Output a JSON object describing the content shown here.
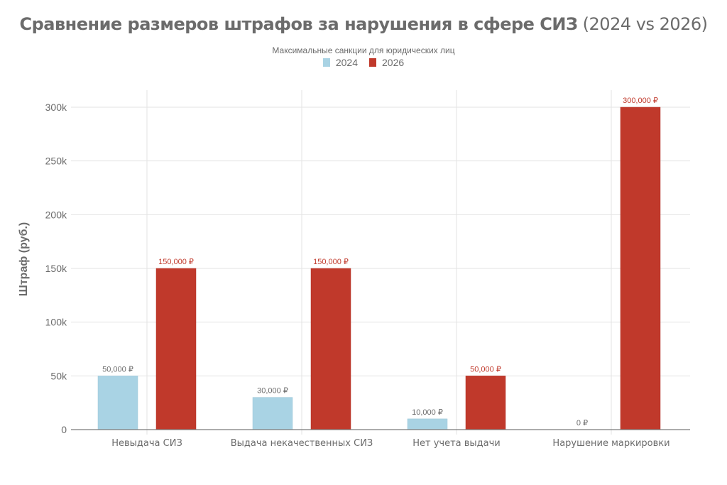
{
  "title": {
    "bold": "Сравнение размеров штрафов за нарушения в сфере СИЗ",
    "light": "(2024 vs 2026)"
  },
  "subtitle": "Максимальные санкции для юридических лиц",
  "legend": [
    {
      "label": "2024",
      "color": "#a9d3e4"
    },
    {
      "label": "2026",
      "color": "#c0392b"
    }
  ],
  "y_axis_label": "Штраф (руб.)",
  "chart_data": {
    "type": "bar",
    "title": "Сравнение размеров штрафов за нарушения в сфере СИЗ (2024 vs 2026)",
    "subtitle": "Максимальные санкции для юридических лиц",
    "xlabel": "",
    "ylabel": "Штраф (руб.)",
    "ylim": [
      0,
      315000
    ],
    "yticks": [
      0,
      50000,
      100000,
      150000,
      200000,
      250000,
      300000
    ],
    "ytick_labels": [
      "0",
      "50k",
      "100k",
      "150k",
      "200k",
      "250k",
      "300k"
    ],
    "grid": true,
    "legend_position": "top-center",
    "categories": [
      "Невыдача СИЗ",
      "Выдача некачественных СИЗ",
      "Нет учета выдачи",
      "Нарушение маркировки"
    ],
    "series": [
      {
        "name": "2024",
        "color": "#a9d3e4",
        "values": [
          50000,
          30000,
          10000,
          0
        ],
        "labels": [
          "50,000 ₽",
          "30,000 ₽",
          "10,000 ₽",
          "0 ₽"
        ]
      },
      {
        "name": "2026",
        "color": "#c0392b",
        "values": [
          150000,
          150000,
          50000,
          300000
        ],
        "labels": [
          "150,000 ₽",
          "150,000 ₽",
          "50,000 ₽",
          "300,000 ₽"
        ]
      }
    ]
  }
}
